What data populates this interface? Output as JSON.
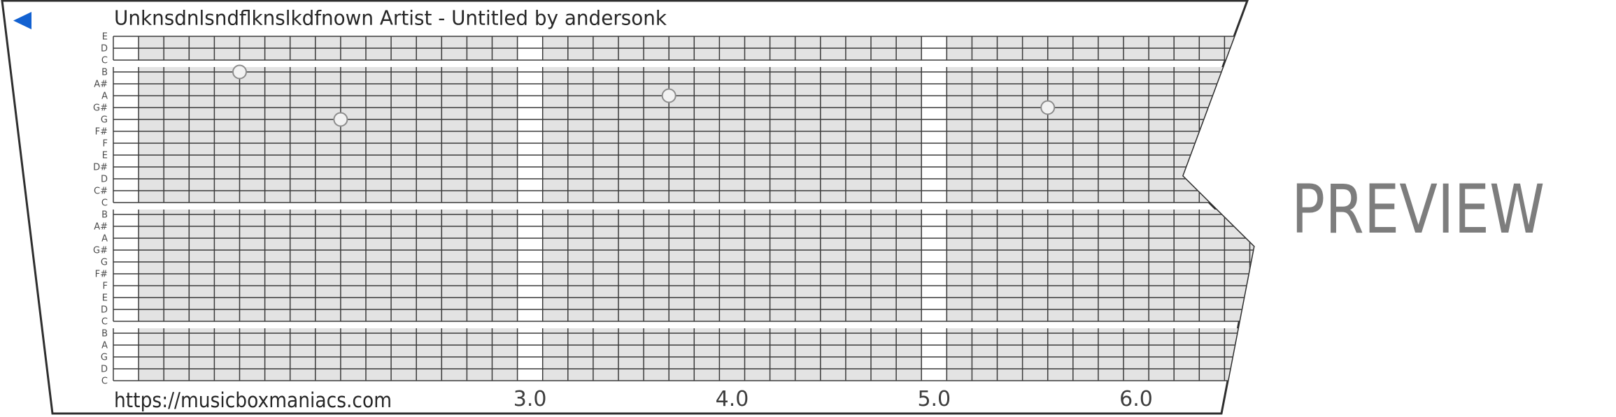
{
  "title": "Unknsdnlsndflknslkdfnown Artist - Untitled by andersonk",
  "url": "https://musicboxmaniacs.com",
  "preview_watermark": "PREVIEW",
  "note_labels": [
    "E",
    "D",
    "C",
    "B",
    "A#",
    "A",
    "G#",
    "G",
    "F#",
    "F",
    "E",
    "D#",
    "D",
    "C#",
    "C",
    "B",
    "A#",
    "A",
    "G#",
    "G",
    "F#",
    "F",
    "E",
    "D",
    "C",
    "B",
    "A",
    "G",
    "D",
    "C"
  ],
  "time_labels": [
    {
      "text": "3.0",
      "col": 16
    },
    {
      "text": "4.0",
      "col": 24
    },
    {
      "text": "5.0",
      "col": 32
    },
    {
      "text": "6.0",
      "col": 40
    }
  ],
  "notes": [
    {
      "note": "B",
      "line": 3,
      "col": 5
    },
    {
      "note": "G",
      "line": 7,
      "col": 9
    },
    {
      "note": "A",
      "line": 5,
      "col": 22
    },
    {
      "note": "G#",
      "line": 6,
      "col": 37
    }
  ],
  "grid": {
    "num_note_lines": 30,
    "columns_per_time_unit": 8,
    "white_column_indices": [
      0,
      16,
      32
    ],
    "octave_break_row_indices": [
      2,
      14,
      24
    ]
  },
  "colors": {
    "play_button": "#1261d1",
    "strip_border": "#2e2e2e",
    "grid_line": "#3a3a3a",
    "cell_fill": "#e3e3e3",
    "note_fill": "#f2f2f2",
    "note_stroke": "#8c8c8c",
    "text_dark": "#262626",
    "text_medium": "#3d3d3d",
    "note_label_color": "#4d4d4d",
    "preview_gray": "#7d7d7d"
  }
}
